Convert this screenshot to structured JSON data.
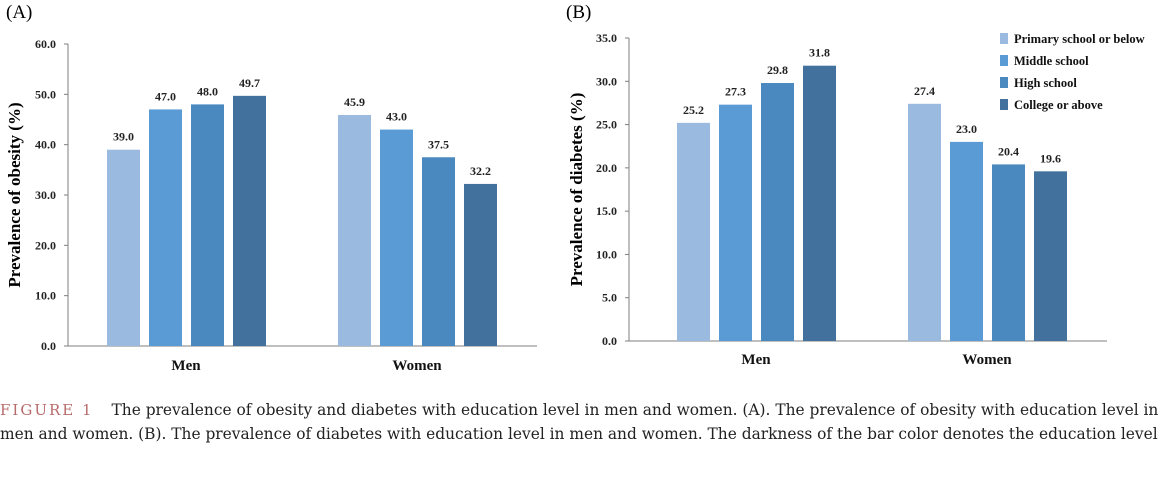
{
  "chart_data": [
    {
      "type": "bar",
      "panel_label": "(A)",
      "ylabel": "Prevalence of obesity (%)",
      "xlabel": "",
      "categories": [
        "Men",
        "Women"
      ],
      "ylim": [
        0,
        60
      ],
      "yticks": [
        "0.0",
        "10.0",
        "20.0",
        "30.0",
        "40.0",
        "50.0",
        "60.0"
      ],
      "grid": false,
      "legend": "none",
      "series": [
        {
          "name": "Primary school or below",
          "color": "#9bbae0",
          "values": [
            39.0,
            45.9
          ],
          "labels": [
            "39.0",
            "45.9"
          ]
        },
        {
          "name": "Middle school",
          "color": "#5b9bd5",
          "values": [
            47.0,
            43.0
          ],
          "labels": [
            "47.0",
            "43.0"
          ]
        },
        {
          "name": "High school",
          "color": "#4a89c0",
          "values": [
            48.0,
            37.5
          ],
          "labels": [
            "48.0",
            "37.5"
          ]
        },
        {
          "name": "College or above",
          "color": "#41719c",
          "values": [
            49.7,
            32.2
          ],
          "labels": [
            "49.7",
            "32.2"
          ]
        }
      ]
    },
    {
      "type": "bar",
      "panel_label": "(B)",
      "ylabel": "Prevalence of diabetes (%)",
      "xlabel": "",
      "categories": [
        "Men",
        "Women"
      ],
      "ylim": [
        0,
        35
      ],
      "yticks": [
        "0.0",
        "5.0",
        "10.0",
        "15.0",
        "20.0",
        "25.0",
        "30.0",
        "35.0"
      ],
      "grid": false,
      "legend": "top-right",
      "series": [
        {
          "name": "Primary school or below",
          "color": "#9bbae0",
          "values": [
            25.2,
            27.4
          ],
          "labels": [
            "25.2",
            "27.4"
          ]
        },
        {
          "name": "Middle school",
          "color": "#5b9bd5",
          "values": [
            27.3,
            23.0
          ],
          "labels": [
            "27.3",
            "23.0"
          ]
        },
        {
          "name": "High school",
          "color": "#4a89c0",
          "values": [
            29.8,
            20.4
          ],
          "labels": [
            "29.8",
            "20.4"
          ]
        },
        {
          "name": "College or above",
          "color": "#41719c",
          "values": [
            31.8,
            19.6
          ],
          "labels": [
            "31.8",
            "19.6"
          ]
        }
      ]
    }
  ],
  "caption": {
    "figure_label": "FIGURE 1",
    "text": "The prevalence of obesity and diabetes with education level in men and women. (A). The prevalence of obesity with education level in men and women. (B). The prevalence of diabetes with education level in men and women. The darkness of the bar color denotes the education level"
  }
}
